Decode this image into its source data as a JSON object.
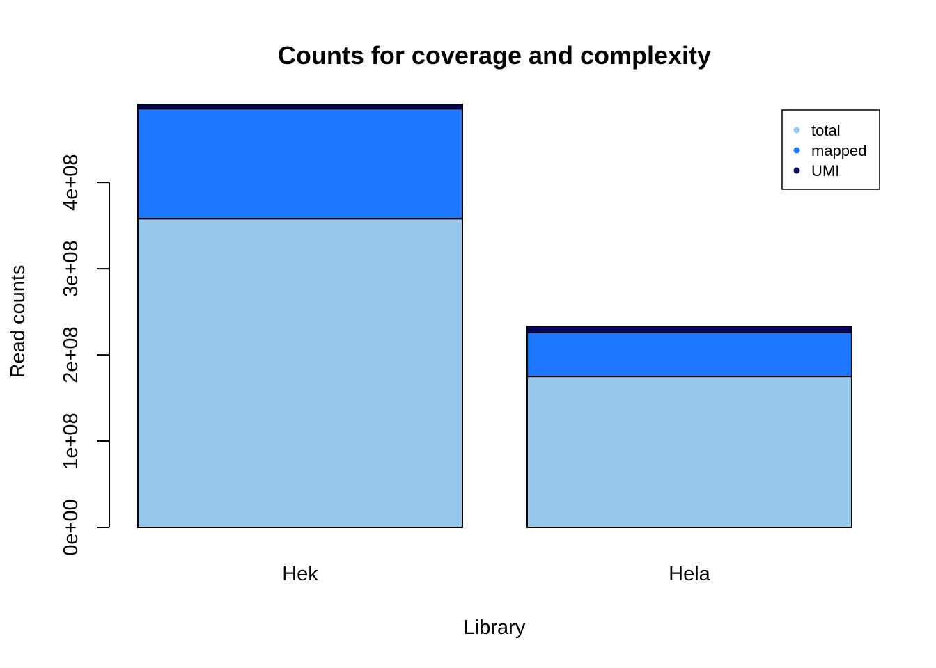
{
  "chart_data": {
    "type": "bar",
    "stacked": true,
    "title": "Counts for coverage and complexity",
    "xlabel": "Library",
    "ylabel": "Read counts",
    "categories": [
      "Hek",
      "Hela"
    ],
    "series": [
      {
        "name": "total",
        "color": "#95C8EA",
        "values": [
          358000000,
          175000000
        ]
      },
      {
        "name": "mapped",
        "color": "#1E78FF",
        "values": [
          127500000,
          51000000
        ]
      },
      {
        "name": "UMI",
        "color": "#00005F",
        "values": [
          5000000,
          7000000
        ]
      }
    ],
    "ylim": [
      0,
      490500000
    ],
    "yticks": [
      {
        "value": 0,
        "label": "0e+00"
      },
      {
        "value": 100000000,
        "label": "1e+08"
      },
      {
        "value": 200000000,
        "label": "2e+08"
      },
      {
        "value": 300000000,
        "label": "3e+08"
      },
      {
        "value": 400000000,
        "label": "4e+08"
      }
    ],
    "legend": {
      "position": "top-right",
      "entries": [
        "total",
        "mapped",
        "UMI"
      ]
    },
    "grid": false
  }
}
